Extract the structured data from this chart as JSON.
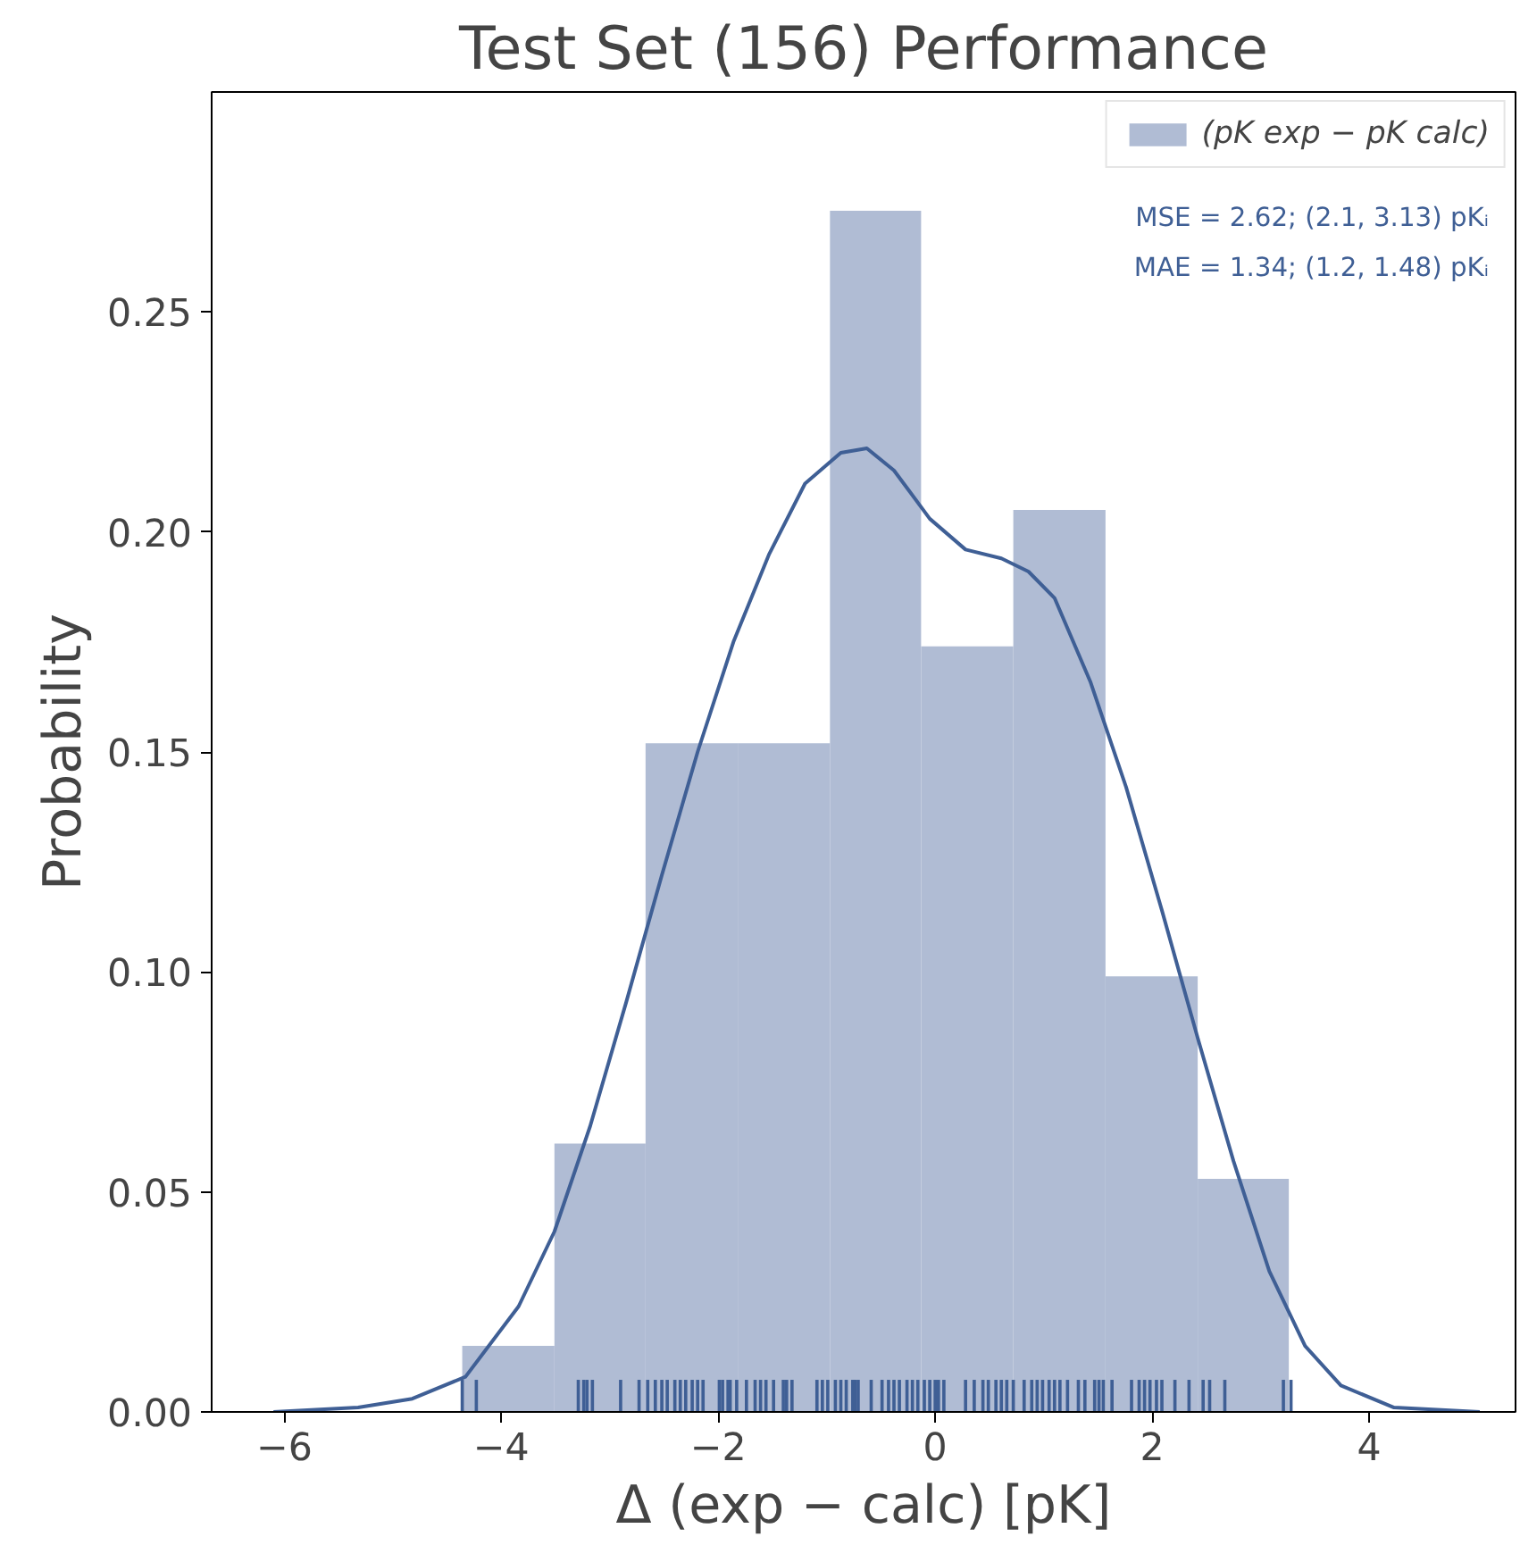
{
  "chart_data": {
    "type": "histogram",
    "title": "Test Set (156) Performance",
    "xlabel": "Δ (exp − calc) [pK]",
    "ylabel": "Probability",
    "annotations": [
      "MSE = 2.62; (2.1, 3.13) pKᵢ",
      "MAE = 1.34; (1.2, 1.48) pKᵢ"
    ],
    "xlim": [
      -6.67,
      5.35
    ],
    "ylim": [
      0,
      0.3
    ],
    "xticks": [
      {
        "value": -6,
        "label": "−6"
      },
      {
        "value": -4,
        "label": "−4"
      },
      {
        "value": -2,
        "label": "−2"
      },
      0,
      2,
      4
    ],
    "yticks": [
      {
        "value": 0,
        "label": "0.00"
      },
      {
        "value": 0.05,
        "label": "0.05"
      },
      {
        "value": 0.1,
        "label": "0.10"
      },
      {
        "value": 0.15,
        "label": "0.15"
      },
      {
        "value": 0.2,
        "label": "0.20"
      },
      {
        "value": 0.25,
        "label": "0.25"
      }
    ],
    "legend": "top right",
    "grid": false,
    "series": [
      {
        "name": "(pK exp − pK calc)",
        "color": "#b0bcd4",
        "bins": [
          -4.36,
          -3.51,
          -2.67,
          -1.82,
          -0.97,
          -0.13,
          0.72,
          1.57,
          2.42,
          3.26
        ],
        "values": [
          0.015,
          0.061,
          0.152,
          0.152,
          0.273,
          0.174,
          0.205,
          0.099,
          0.053
        ]
      },
      {
        "type": "line",
        "color": "#3f5f95",
        "x": [
          -6.1,
          -5.32,
          -4.82,
          -4.33,
          -3.84,
          -3.51,
          -3.18,
          -2.85,
          -2.52,
          -2.19,
          -1.86,
          -1.53,
          -1.2,
          -0.87,
          -0.63,
          -0.38,
          -0.05,
          0.28,
          0.61,
          0.86,
          1.1,
          1.43,
          1.76,
          2.09,
          2.42,
          2.75,
          3.08,
          3.41,
          3.74,
          4.23,
          5.02
        ],
        "values": [
          0,
          0.001,
          0.003,
          0.008,
          0.024,
          0.041,
          0.065,
          0.093,
          0.122,
          0.15,
          0.175,
          0.195,
          0.211,
          0.218,
          0.219,
          0.214,
          0.203,
          0.196,
          0.194,
          0.191,
          0.185,
          0.166,
          0.142,
          0.114,
          0.085,
          0.057,
          0.032,
          0.015,
          0.006,
          0.001,
          0
        ]
      },
      {
        "type": "bar",
        "color": "#3f5f95",
        "x": [
          -4.36,
          -4.23,
          -3.29,
          -3.24,
          -3.21,
          -3.16,
          -2.9,
          -2.73,
          -2.65,
          -2.58,
          -2.52,
          -2.47,
          -2.4,
          -2.35,
          -2.3,
          -2.24,
          -2.19,
          -2.14,
          -1.99,
          -1.96,
          -1.91,
          -1.89,
          -1.83,
          -1.74,
          -1.66,
          -1.61,
          -1.56,
          -1.49,
          -1.4,
          -1.37,
          -1.32,
          -1.09,
          -1.04,
          -0.99,
          -0.92,
          -0.87,
          -0.82,
          -0.76,
          -0.74,
          -0.71,
          -0.59,
          -0.49,
          -0.43,
          -0.38,
          -0.33,
          -0.26,
          -0.21,
          -0.16,
          -0.1,
          -0.05,
          0,
          0.03,
          0.08,
          0.28,
          0.36,
          0.44,
          0.49,
          0.56,
          0.61,
          0.66,
          0.72,
          0.82,
          0.89,
          0.94,
          0.99,
          1.05,
          1.1,
          1.15,
          1.22,
          1.32,
          1.38,
          1.47,
          1.51,
          1.55,
          1.63,
          1.81,
          1.88,
          1.93,
          1.98,
          2.04,
          2.09,
          2.21,
          2.34,
          2.47,
          2.53,
          2.67,
          3.21,
          3.28
        ],
        "values": [
          0.0073,
          0.0073,
          0.0073,
          0.0073,
          0.0073,
          0.0073,
          0.0073,
          0.0073,
          0.0073,
          0.0073,
          0.0073,
          0.0073,
          0.0073,
          0.0073,
          0.0073,
          0.0073,
          0.0073,
          0.0073,
          0.0073,
          0.0073,
          0.0073,
          0.0073,
          0.0073,
          0.0073,
          0.0073,
          0.0073,
          0.0073,
          0.0073,
          0.0073,
          0.0073,
          0.0073,
          0.0073,
          0.0073,
          0.0073,
          0.0073,
          0.0073,
          0.0073,
          0.0073,
          0.0073,
          0.0073,
          0.0073,
          0.0073,
          0.0073,
          0.0073,
          0.0073,
          0.0073,
          0.0073,
          0.0073,
          0.0073,
          0.0073,
          0.0073,
          0.0073,
          0.0073,
          0.0073,
          0.0073,
          0.0073,
          0.0073,
          0.0073,
          0.0073,
          0.0073,
          0.0073,
          0.0073,
          0.0073,
          0.0073,
          0.0073,
          0.0073,
          0.0073,
          0.0073,
          0.0073,
          0.0073,
          0.0073,
          0.0073,
          0.0073,
          0.0073,
          0.0073,
          0.0073,
          0.0073,
          0.0073,
          0.0073,
          0.0073,
          0.0073,
          0.0073,
          0.0073,
          0.0073,
          0.0073,
          0.0073,
          0.0073,
          0.0073
        ]
      }
    ]
  }
}
